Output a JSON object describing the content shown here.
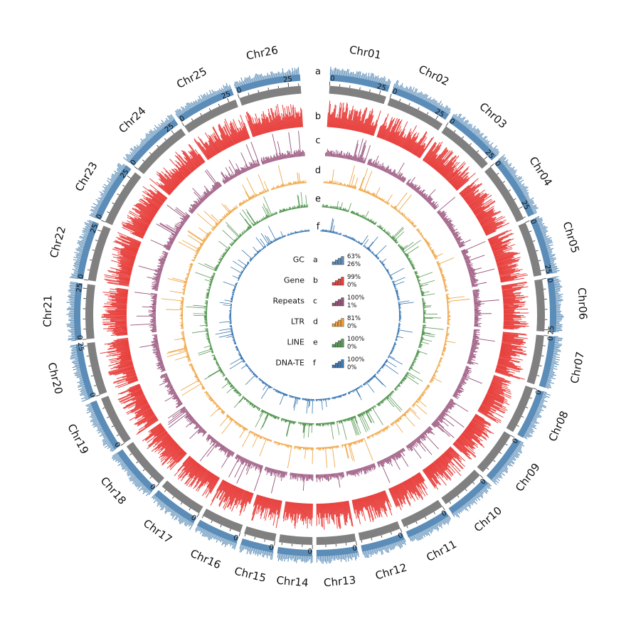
{
  "chromosomes": [
    {
      "name": "Chr01",
      "size": 28.5
    },
    {
      "name": "Chr02",
      "size": 29.0
    },
    {
      "name": "Chr03",
      "size": 27.8
    },
    {
      "name": "Chr04",
      "size": 30.6
    },
    {
      "name": "Chr05",
      "size": 27.2
    },
    {
      "name": "Chr06",
      "size": 25.9
    },
    {
      "name": "Chr07",
      "size": 24.6
    },
    {
      "name": "Chr08",
      "size": 23.8
    },
    {
      "name": "Chr09",
      "size": 22.9
    },
    {
      "name": "Chr10",
      "size": 22.2
    },
    {
      "name": "Chr11",
      "size": 21.5
    },
    {
      "name": "Chr12",
      "size": 20.8
    },
    {
      "name": "Chr13",
      "size": 19.6
    },
    {
      "name": "Chr14",
      "size": 16.6
    },
    {
      "name": "Chr15",
      "size": 15.7
    },
    {
      "name": "Chr16",
      "size": 20.4
    },
    {
      "name": "Chr17",
      "size": 22.7
    },
    {
      "name": "Chr18",
      "size": 24.4
    },
    {
      "name": "Chr19",
      "size": 24.8
    },
    {
      "name": "Chr20",
      "size": 26.3
    },
    {
      "name": "Chr21",
      "size": 27.2
    },
    {
      "name": "Chr22",
      "size": 28.0
    },
    {
      "name": "Chr23",
      "size": 28.7
    },
    {
      "name": "Chr24",
      "size": 29.4
    },
    {
      "name": "Chr25",
      "size": 28.5
    },
    {
      "name": "Chr26",
      "size": 31.0
    }
  ],
  "tick_labels": [
    "0",
    "25"
  ],
  "tracks": [
    {
      "letter": "a",
      "name": "GC",
      "max": "63%",
      "min": "26%",
      "color": "#5b8db8"
    },
    {
      "letter": "b",
      "name": "Gene",
      "max": "99%",
      "min": "0%",
      "color": "#e8403d"
    },
    {
      "letter": "c",
      "name": "Repeats",
      "max": "100%",
      "min": "1%",
      "color": "#97507a"
    },
    {
      "letter": "d",
      "name": "LTR",
      "max": "81%",
      "min": "0%",
      "color": "#ef9e35"
    },
    {
      "letter": "e",
      "name": "LINE",
      "max": "100%",
      "min": "0%",
      "color": "#5a9a58"
    },
    {
      "letter": "f",
      "name": "DNA-TE",
      "max": "100%",
      "min": "0%",
      "color": "#3b78b2"
    }
  ],
  "colors": {
    "karyotype": "#808080",
    "gc": "#5b8db8"
  }
}
